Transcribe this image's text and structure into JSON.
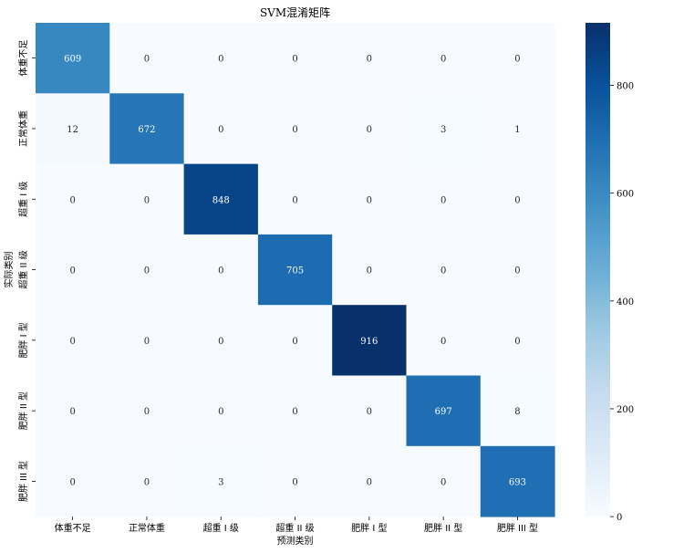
{
  "chart_data": {
    "type": "heatmap",
    "title": "SVM混淆矩阵",
    "xlabel": "预测类别",
    "ylabel": "实际类别",
    "x_categories": [
      "体重不足",
      "正常体重",
      "超重 I 级",
      "超重 II 级",
      "肥胖 I 型",
      "肥胖 II 型",
      "肥胖 III 型"
    ],
    "y_categories": [
      "体重不足",
      "正常体重",
      "超重 I 级",
      "超重 II 级",
      "肥胖 I 型",
      "肥胖 II 型",
      "肥胖 III 型"
    ],
    "values": [
      [
        609,
        0,
        0,
        0,
        0,
        0,
        0
      ],
      [
        12,
        672,
        0,
        0,
        0,
        3,
        1
      ],
      [
        0,
        0,
        848,
        0,
        0,
        0,
        0
      ],
      [
        0,
        0,
        0,
        705,
        0,
        0,
        0
      ],
      [
        0,
        0,
        0,
        0,
        916,
        0,
        0
      ],
      [
        0,
        0,
        0,
        0,
        0,
        697,
        8
      ],
      [
        0,
        0,
        3,
        0,
        0,
        0,
        693
      ]
    ],
    "colorbar": {
      "colormap": "Blues",
      "range": [
        0,
        916
      ],
      "ticks": [
        0,
        200,
        400,
        600,
        800
      ]
    }
  }
}
